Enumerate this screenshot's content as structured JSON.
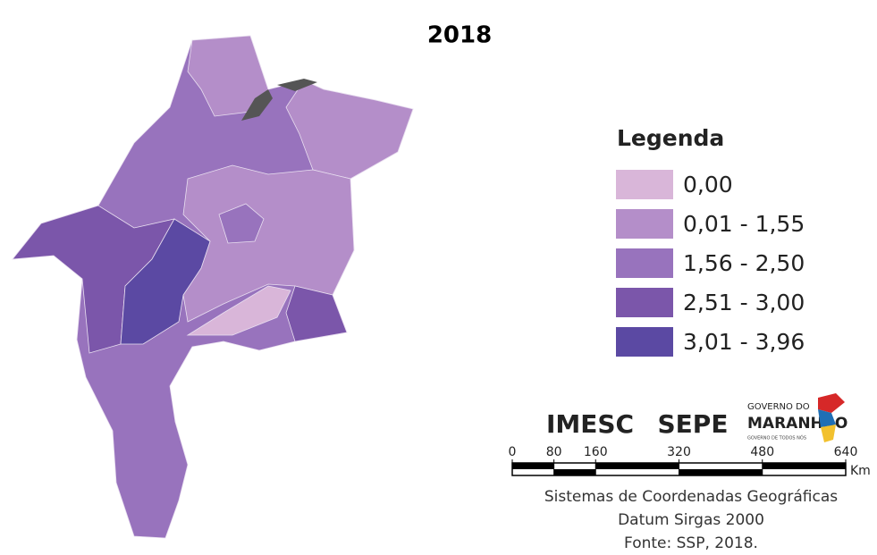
{
  "title": "2018",
  "legend": {
    "title": "Legenda",
    "items": [
      {
        "label": "0,00",
        "color": "#d9b6d9"
      },
      {
        "label": "0,01 - 1,55",
        "color": "#b48ec9"
      },
      {
        "label": "1,56 - 2,50",
        "color": "#9873bd"
      },
      {
        "label": "2,51 - 3,00",
        "color": "#7b56aa"
      },
      {
        "label": "3,01 - 3,96",
        "color": "#5b49a3"
      }
    ]
  },
  "logos": {
    "imesc": "IMESC",
    "sepe": "SEPE",
    "gov_top": "GOVERNO DO",
    "gov_main": "MARANHÃO",
    "gov_sub": "GOVERNO DE TODOS NÓS"
  },
  "scale": {
    "ticks": [
      0,
      80,
      160,
      320,
      480,
      640
    ],
    "unit": "Km"
  },
  "notes": [
    "Sistemas de Coordenadas Geográficas",
    "Datum Sirgas 2000",
    "Fonte: SSP, 2018."
  ]
}
